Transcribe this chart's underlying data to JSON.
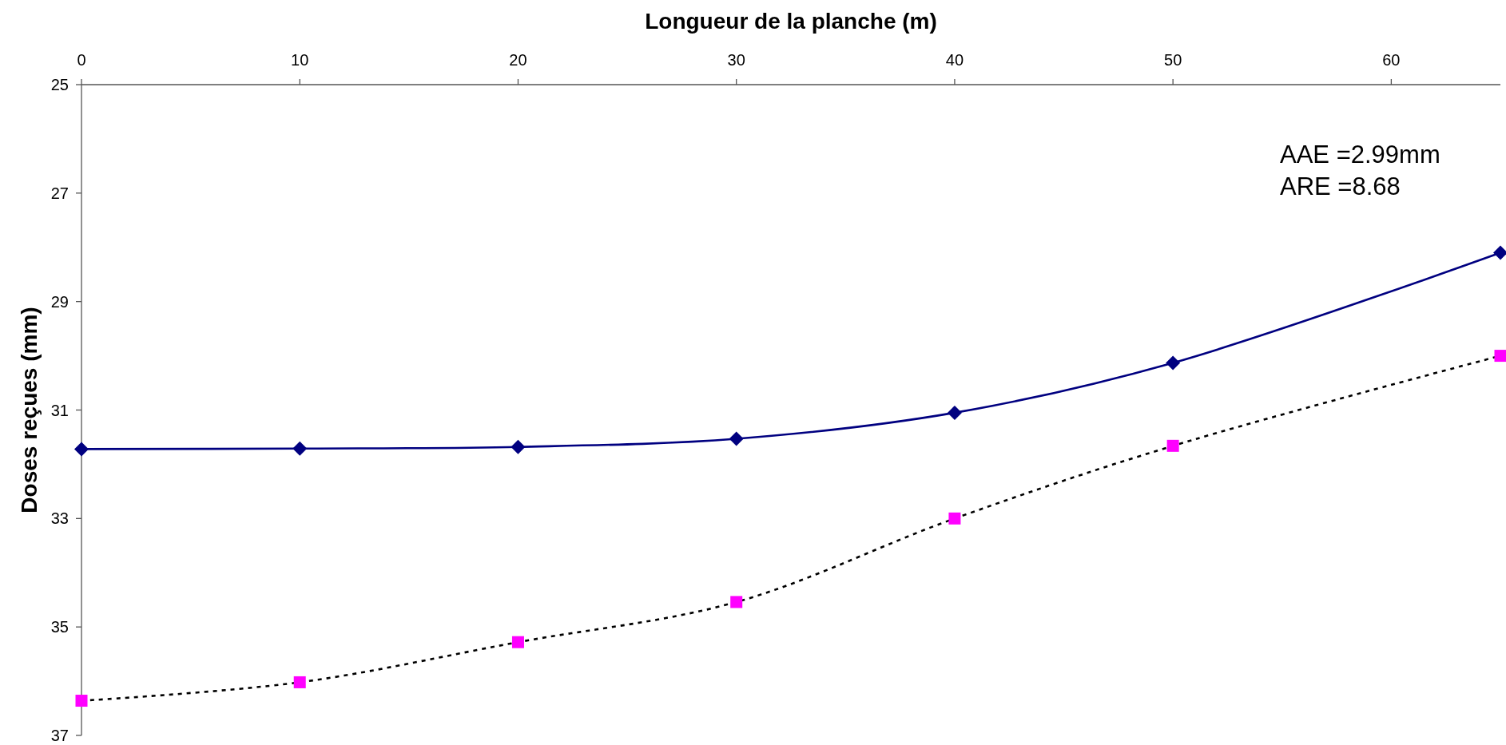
{
  "chart_data": {
    "type": "line",
    "xlabel": "Longueur de la planche (m)",
    "ylabel": "Doses reçues (mm)",
    "annotations": [
      "AAE =2.99mm",
      "ARE =8.68"
    ],
    "x": [
      0,
      10,
      20,
      30,
      40,
      50,
      65
    ],
    "series": [
      {
        "color": "#000080",
        "marker": "diamond",
        "line_style": "solid",
        "values": [
          31.72,
          31.71,
          31.68,
          31.53,
          31.05,
          30.13,
          28.1
        ]
      },
      {
        "color": "#000000",
        "colors": [
          "#ff00ff",
          "#ff00ff",
          "#ff00ff",
          "#ff00ff",
          "#ff00ff",
          "#ff00ff",
          "#ff00ff"
        ],
        "marker": "square",
        "line_style": "dotted",
        "values": [
          36.36,
          36.02,
          35.28,
          34.54,
          33.0,
          31.66,
          30.0
        ]
      }
    ],
    "xlim": [
      0,
      65
    ],
    "xticks": [
      0,
      10,
      20,
      30,
      40,
      50,
      60
    ],
    "ylim": [
      37,
      25
    ],
    "yticks": [
      25,
      27,
      29,
      31,
      33,
      35,
      37
    ],
    "grid": false
  }
}
